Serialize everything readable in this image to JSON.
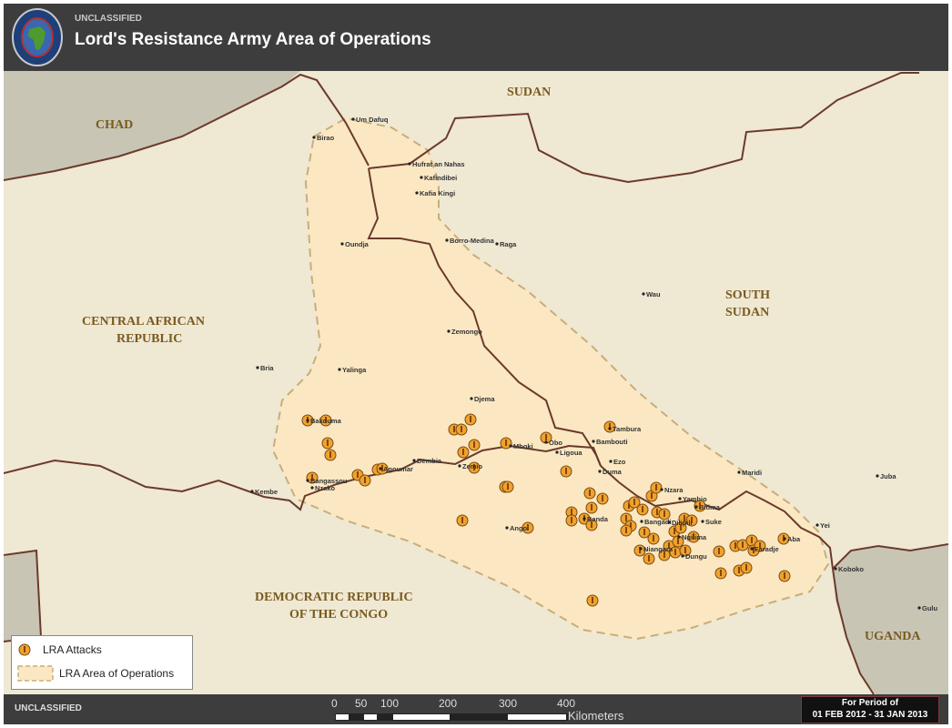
{
  "header": {
    "classification": "UNCLASSIFIED",
    "title": "Lord's Resistance Army Area of Operations",
    "seal_icon": "africom-seal"
  },
  "map": {
    "colors": {
      "land": "#efe8d3",
      "neighbor_gray": "#c8c5b5",
      "area_of_operations": "#fbe8c3",
      "border": "#6b3a2a",
      "attack": "#f0a22e"
    },
    "countries": {
      "chad": "CHAD",
      "sudan": "SUDAN",
      "south_sudan_1": "SOUTH",
      "south_sudan_2": "SUDAN",
      "car_1": "CENTRAL AFRICAN",
      "car_2": "REPUBLIC",
      "drc_1": "DEMOCRATIC REPUBLIC",
      "drc_2": "OF THE CONGO",
      "uganda": "UGANDA"
    },
    "cities": [
      "Um Dafuq",
      "Birao",
      "Hufrat an Nahas",
      "Kafindibei",
      "Kafia Kingi",
      "Borro-Medina",
      "Raga",
      "Oundja",
      "Wau",
      "Zemongo",
      "Bria",
      "Yalinga",
      "Djema",
      "Bakouma",
      "Tambura",
      "Obo",
      "Mboki",
      "Bambouti",
      "Ligoua",
      "Dembia",
      "Zemio",
      "Agoumar",
      "Bangassou",
      "Nzako",
      "Kembe",
      "Ezo",
      "Duma",
      "Maridi",
      "Juba",
      "Nzara",
      "Yambio",
      "Bitima",
      "Suke",
      "Bangadi",
      "Dilipili",
      "Ngilima",
      "Banda",
      "Ango",
      "Niangara",
      "Dungu",
      "Faradje",
      "Aba",
      "Yei",
      "Koboko",
      "Gulu"
    ]
  },
  "legend": {
    "attacks_label": "LRA Attacks",
    "area_label": "LRA Area of Operations"
  },
  "footer": {
    "classification": "UNCLASSIFIED",
    "scale_ticks": [
      "0",
      "50",
      "100",
      "200",
      "300",
      "400"
    ],
    "scale_unit": "Kilometers",
    "period_label": "For Period of",
    "period_range": "01 FEB 2012 - 31 JAN 2013"
  }
}
